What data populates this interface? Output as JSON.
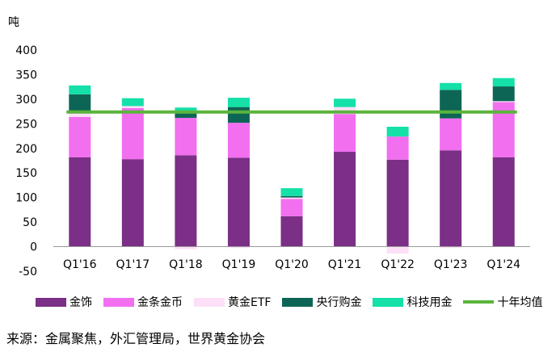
{
  "chart_data": {
    "type": "bar",
    "stacked": true,
    "unit_label": "吨",
    "categories": [
      "Q1'16",
      "Q1'17",
      "Q1'18",
      "Q1'19",
      "Q1'20",
      "Q1'21",
      "Q1'22",
      "Q1'23",
      "Q1'24"
    ],
    "ylim": [
      -50,
      400
    ],
    "yticks": [
      -50,
      0,
      50,
      100,
      150,
      200,
      250,
      300,
      350,
      400
    ],
    "grid": false,
    "legend_position": "bottom",
    "series": [
      {
        "name": "金饰",
        "color": "#7b2f86",
        "values": [
          182,
          178,
          186,
          181,
          62,
          193,
          177,
          196,
          182
        ]
      },
      {
        "name": "金条金币",
        "color": "#f26ff0",
        "values": [
          82,
          104,
          76,
          71,
          35,
          77,
          47,
          65,
          112
        ]
      },
      {
        "name": "黄金ETF",
        "color": "#fde0f8",
        "values": [
          10,
          4,
          -5,
          -3,
          3,
          14,
          -14,
          -3,
          2
        ]
      },
      {
        "name": "央行购金",
        "color": "#0d6655",
        "values": [
          36,
          0,
          9,
          32,
          3,
          0,
          0,
          58,
          30
        ]
      },
      {
        "name": "科技用金",
        "color": "#14e0a8",
        "values": [
          18,
          16,
          12,
          19,
          16,
          17,
          20,
          14,
          17
        ]
      }
    ],
    "average_line": {
      "name": "十年均值",
      "color": "#5ab43c",
      "value": 274
    }
  },
  "source_text": "来源：金属聚焦，外汇管理局，世界黄金协会"
}
